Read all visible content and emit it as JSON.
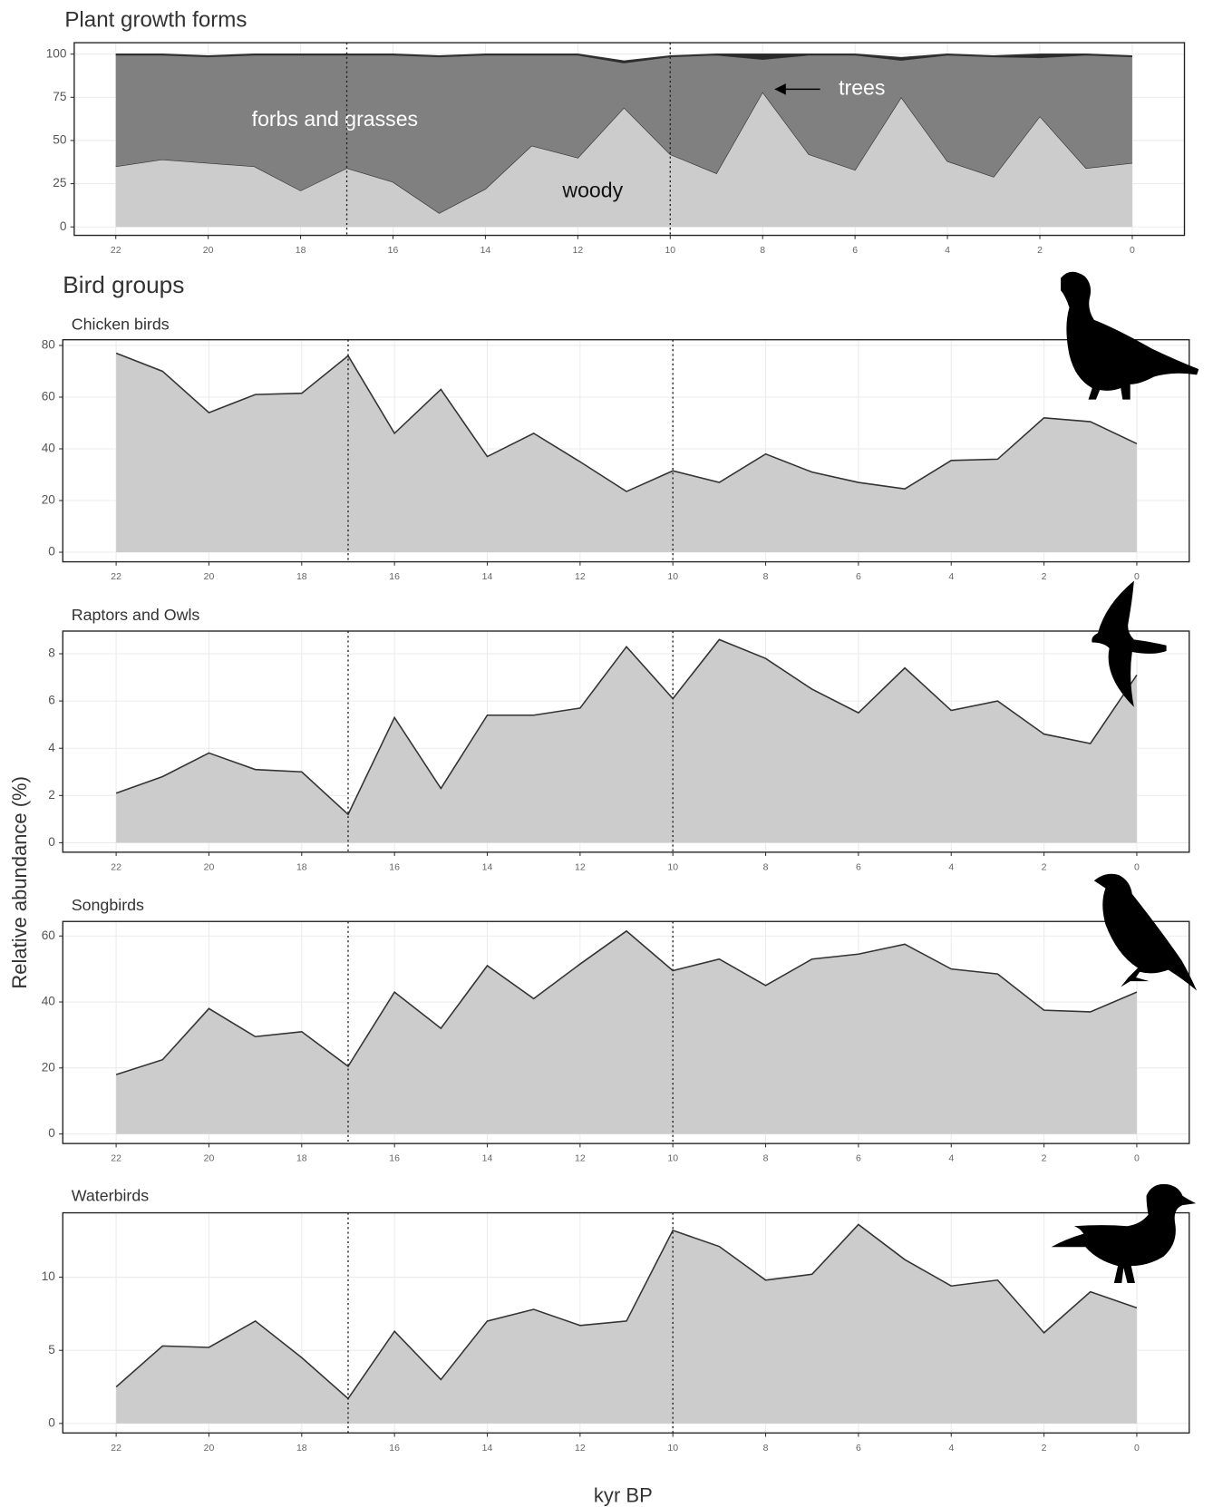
{
  "figure": {
    "section_title": "Bird groups",
    "y_label": "Relative abundance (%)",
    "x_label": "kyr BP"
  },
  "chart_data": [
    {
      "type": "stacked_area",
      "title": "Plant growth forms",
      "x": [
        22,
        21,
        20,
        19,
        18,
        17,
        16,
        15,
        14,
        13,
        12,
        11,
        10,
        9,
        8,
        7,
        6,
        5,
        4,
        3,
        2,
        1,
        0
      ],
      "series": [
        {
          "name": "woody",
          "color": "#cccccc",
          "values": [
            35,
            39,
            37,
            35,
            21,
            34,
            26,
            8,
            22,
            47,
            40,
            69,
            42,
            31,
            78,
            42,
            33,
            75,
            38,
            29,
            64,
            34,
            37
          ]
        },
        {
          "name": "forbs and grasses",
          "color": "#808080",
          "values": [
            64.5,
            60.5,
            61.5,
            64.5,
            78.5,
            65.5,
            73.5,
            90.5,
            77.5,
            52.5,
            59.5,
            26,
            56.5,
            68.5,
            19,
            57.5,
            66.5,
            21.5,
            61.5,
            69.5,
            34,
            65.5,
            61.5
          ]
        },
        {
          "name": "trees",
          "color": "#2a2a2a",
          "values": [
            0.5,
            0.5,
            0.5,
            0.5,
            0.5,
            0.5,
            0.5,
            0.5,
            0.5,
            0.5,
            0.5,
            1,
            0.5,
            0.5,
            3,
            0.5,
            0.5,
            1.5,
            0.5,
            0.5,
            2,
            0.5,
            0.5
          ]
        }
      ],
      "xlim": [
        22.9,
        -1.13
      ],
      "ylim": [
        -4.9,
        106.6
      ],
      "xticks": [
        22,
        20,
        18,
        16,
        14,
        12,
        10,
        8,
        6,
        4,
        2,
        0
      ],
      "yticks": [
        0,
        25,
        50,
        75,
        100
      ],
      "vlines": [
        17,
        10
      ],
      "grid": true
    },
    {
      "type": "area",
      "title": "Chicken birds",
      "color": "#cccccc",
      "x": [
        22,
        21,
        20,
        19,
        18,
        17,
        16,
        15,
        14,
        13,
        12,
        11,
        10,
        9,
        8,
        7,
        6,
        5,
        4,
        3,
        2,
        1,
        0
      ],
      "values": [
        77,
        70,
        54,
        61,
        61.5,
        76,
        46,
        63,
        37,
        46,
        35,
        23.5,
        31.5,
        27,
        38,
        31,
        27,
        24.5,
        35.5,
        36,
        52,
        50.5,
        42
      ],
      "xlim": [
        23.15,
        -1.13
      ],
      "ylim": [
        -3.7,
        82.2
      ],
      "xticks": [
        22,
        20,
        18,
        16,
        14,
        12,
        10,
        8,
        6,
        4,
        2,
        0
      ],
      "yticks": [
        0,
        20,
        40,
        60,
        80
      ],
      "vlines": [
        17,
        10
      ],
      "grid": true
    },
    {
      "type": "area",
      "title": "Raptors and Owls",
      "color": "#cccccc",
      "x": [
        22,
        21,
        20,
        19,
        18,
        17,
        16,
        15,
        14,
        13,
        12,
        11,
        10,
        9,
        8,
        7,
        6,
        5,
        4,
        3,
        2,
        1,
        0
      ],
      "values": [
        2.1,
        2.8,
        3.8,
        3.1,
        3.0,
        1.2,
        5.3,
        2.3,
        5.4,
        5.4,
        5.7,
        8.3,
        6.1,
        8.6,
        7.8,
        6.5,
        5.5,
        7.4,
        5.6,
        6.0,
        4.6,
        4.2,
        7.1
      ],
      "xlim": [
        23.15,
        -1.13
      ],
      "ylim": [
        -0.4,
        8.96
      ],
      "xticks": [
        22,
        20,
        18,
        16,
        14,
        12,
        10,
        8,
        6,
        4,
        2,
        0
      ],
      "yticks": [
        0,
        2,
        4,
        6,
        8
      ],
      "vlines": [
        17,
        10
      ],
      "grid": true
    },
    {
      "type": "area",
      "title": "Songbirds",
      "color": "#cccccc",
      "x": [
        22,
        21,
        20,
        19,
        18,
        17,
        16,
        15,
        14,
        13,
        12,
        11,
        10,
        9,
        8,
        7,
        6,
        5,
        4,
        3,
        2,
        1,
        0
      ],
      "values": [
        18,
        22.5,
        38,
        29.5,
        31,
        20.5,
        43,
        32,
        51,
        41,
        51.5,
        61.5,
        49.5,
        53,
        45,
        53,
        54.5,
        57.5,
        50,
        48.5,
        37.5,
        37,
        43
      ],
      "xlim": [
        23.15,
        -1.13
      ],
      "ylim": [
        -2.9,
        64.4
      ],
      "xticks": [
        22,
        20,
        18,
        16,
        14,
        12,
        10,
        8,
        6,
        4,
        2,
        0
      ],
      "yticks": [
        0,
        20,
        40,
        60
      ],
      "vlines": [
        17,
        10
      ],
      "grid": true
    },
    {
      "type": "area",
      "title": "Waterbirds",
      "color": "#cccccc",
      "x": [
        22,
        21,
        20,
        19,
        18,
        17,
        16,
        15,
        14,
        13,
        12,
        11,
        10,
        9,
        8,
        7,
        6,
        5,
        4,
        3,
        2,
        1,
        0
      ],
      "values": [
        2.5,
        5.3,
        5.2,
        7,
        4.5,
        1.7,
        6.3,
        3,
        7,
        7.8,
        6.7,
        7,
        13.2,
        12.1,
        9.8,
        10.2,
        13.6,
        11.2,
        9.4,
        9.8,
        6.2,
        9,
        7.9
      ],
      "xlim": [
        23.15,
        -1.13
      ],
      "ylim": [
        -0.65,
        14.4
      ],
      "xticks": [
        22,
        20,
        18,
        16,
        14,
        12,
        10,
        8,
        6,
        4,
        2,
        0
      ],
      "yticks": [
        0,
        5,
        10
      ],
      "vlines": [
        17,
        10
      ],
      "grid": true
    }
  ]
}
